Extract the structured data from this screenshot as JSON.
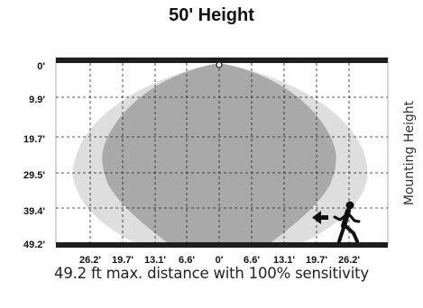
{
  "title": "50' Height",
  "caption": "49.2 ft max. distance with 100% sensitivity",
  "side_label": "Mounting Height",
  "y_ticks": [
    "0'",
    "9.9'",
    "19.7'",
    "29.5'",
    "39.4'",
    "49.2'"
  ],
  "x_ticks": [
    "26.2'",
    "19.7'",
    "13.1'",
    "6.6'",
    "0'",
    "6.6'",
    "13.1'",
    "19.7'",
    "26.2'"
  ],
  "colors": {
    "outer_zone": "#dedede",
    "inner_zone": "#a9a9a9",
    "bars": "#1e1e1e"
  },
  "icons": [
    "arrow-left-icon",
    "walking-person-icon"
  ]
}
